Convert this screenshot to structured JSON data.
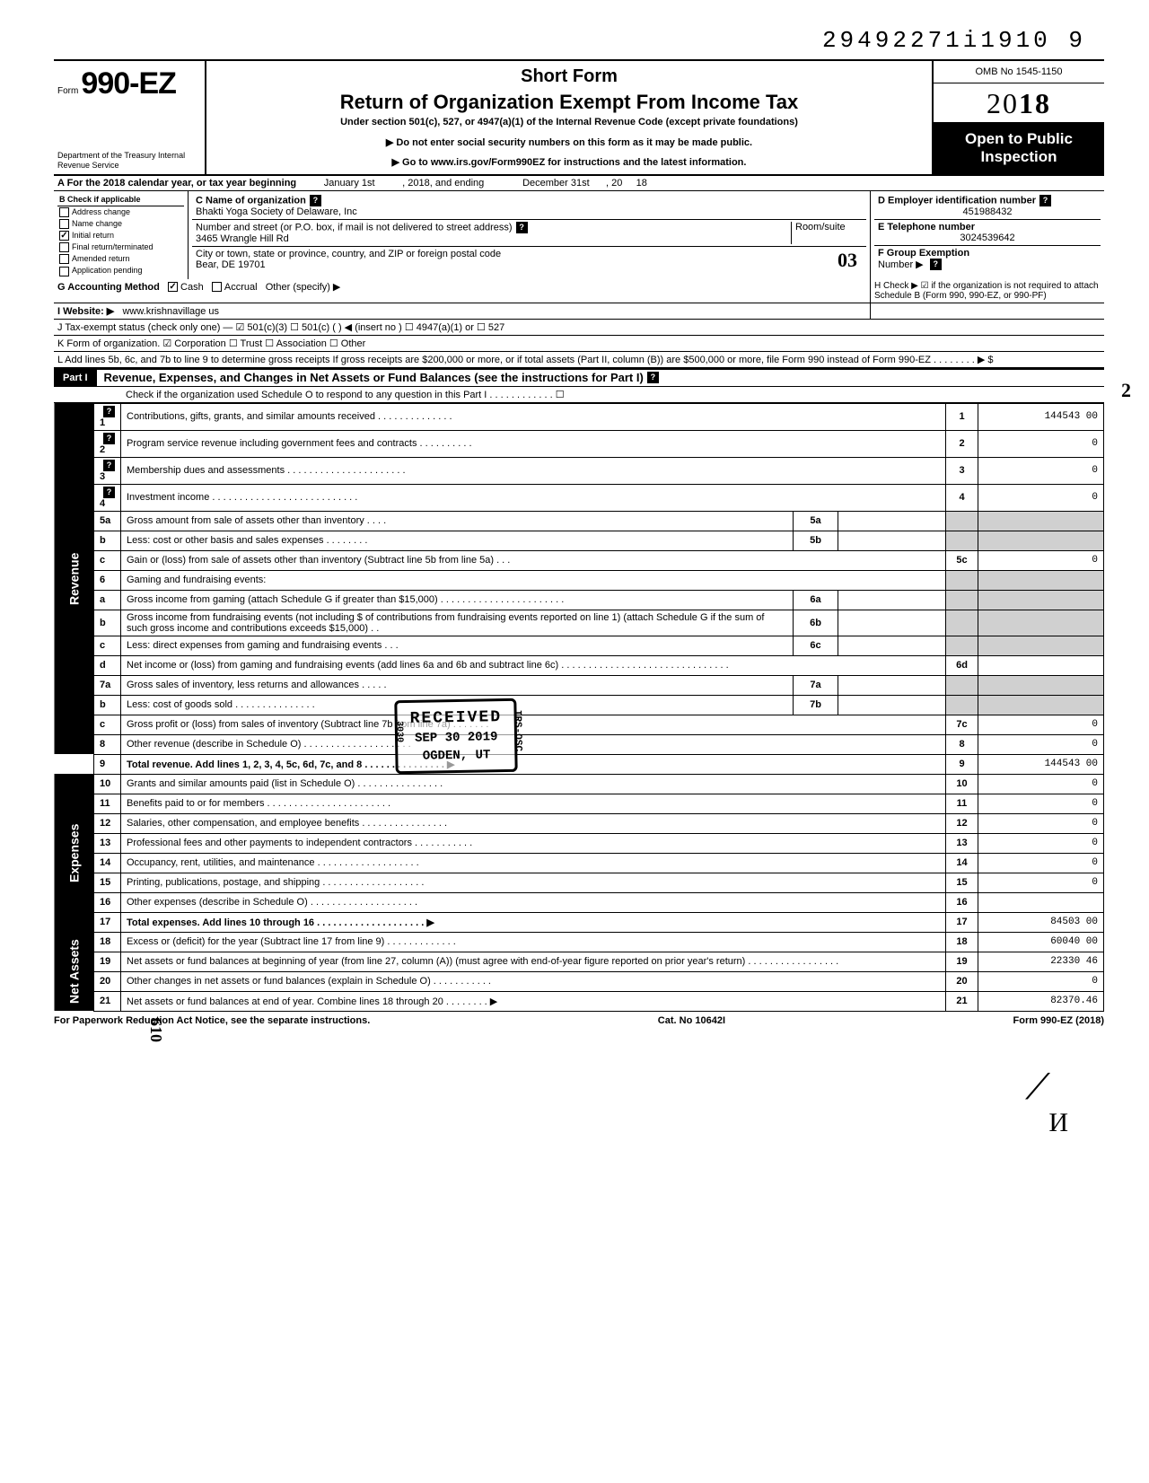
{
  "top_id": "29492271i1910 9",
  "header": {
    "form_prefix": "Form",
    "form_number": "990-EZ",
    "dept": "Department of the Treasury\nInternal Revenue Service",
    "short": "Short Form",
    "title": "Return of Organization Exempt From Income Tax",
    "sub": "Under section 501(c), 527, or 4947(a)(1) of the Internal Revenue Code (except private foundations)",
    "warn": "▶ Do not enter social security numbers on this form as it may be made public.",
    "goto": "▶ Go to www.irs.gov/Form990EZ for instructions and the latest information.",
    "omb": "OMB No 1545-1150",
    "year_prefix": "20",
    "year_suffix": "18",
    "open": "Open to Public Inspection"
  },
  "lineA": {
    "label": "A For the 2018 calendar year, or tax year beginning",
    "begin": "January 1st",
    "mid": ", 2018, and ending",
    "end": "December 31st",
    "suffix": ", 20",
    "yr": "18"
  },
  "checkB": {
    "heading": "B Check if applicable",
    "items": [
      "Address change",
      "Name change",
      "Initial return",
      "Final return/terminated",
      "Amended return",
      "Application pending"
    ],
    "checked_index": 2
  },
  "org": {
    "c_label": "C Name of organization",
    "name": "Bhakti Yoga Society of Delaware, Inc",
    "addr_label": "Number and street (or P.O. box, if mail is not delivered to street address)",
    "room_label": "Room/suite",
    "street": "3465 Wrangle Hill Rd",
    "city_label": "City or town, state or province, country, and ZIP or foreign postal code",
    "city": "Bear, DE 19701",
    "hand_city": "03"
  },
  "right": {
    "d_label": "D Employer identification number",
    "ein": "451988432",
    "e_label": "E Telephone number",
    "phone": "3024539642",
    "f_label": "F Group Exemption",
    "f_sub": "Number ▶"
  },
  "G": {
    "label": "G Accounting Method",
    "cash": "Cash",
    "accrual": "Accrual",
    "other": "Other (specify) ▶"
  },
  "H": "H Check ▶ ☑ if the organization is not required to attach Schedule B (Form 990, 990-EZ, or 990-PF)",
  "I": {
    "label": "I Website: ▶",
    "value": "www.krishnavillage us"
  },
  "J": "J Tax-exempt status (check only one) — ☑ 501(c)(3)   ☐ 501(c) (    ) ◀ (insert no )  ☐ 4947(a)(1) or   ☐ 527",
  "K": "K Form of organization.  ☑ Corporation   ☐ Trust   ☐ Association   ☐ Other",
  "L": "L Add lines 5b, 6c, and 7b to line 9 to determine gross receipts  If gross receipts are $200,000 or more, or if total assets (Part II, column (B)) are $500,000 or more, file Form 990 instead of Form 990-EZ  .   .   .   .   .   .   .   .   ▶  $",
  "partI": {
    "label": "Part I",
    "title": "Revenue, Expenses, and Changes in Net Assets or Fund Balances (see the instructions for Part I)",
    "check": "Check if the organization used Schedule O to respond to any question in this Part I  .  .  .  .  .  .  .  .  .  .  .  .  ☐"
  },
  "hand2": "2",
  "lines": {
    "1": {
      "text": "Contributions, gifts, grants, and similar amounts received .  .  .  .  .  .  .  .  .  .  .  .  .  .",
      "box": "1",
      "amount": "144543 00"
    },
    "2": {
      "text": "Program service revenue including government fees and contracts  .  .  .  .  .  .  .  .  .  .",
      "box": "2",
      "amount": "0"
    },
    "3": {
      "text": "Membership dues and assessments .  .  .  .  .  .  .  .  .  .  .  .  .  .  .  .  .  .  .  .  .  .",
      "box": "3",
      "amount": "0"
    },
    "4": {
      "text": "Investment income  .  .  .  .  .  .  .  .  .  .  .  .  .  .  .  .  .  .  .  .  .  .  .  .  .  .  .",
      "box": "4",
      "amount": "0"
    },
    "5a": {
      "text": "Gross amount from sale of assets other than inventory  .  .  .  .",
      "sub": "5a"
    },
    "5b": {
      "text": "Less: cost or other basis and sales expenses .  .  .  .  .  .  .  .",
      "sub": "5b"
    },
    "5c": {
      "text": "Gain or (loss) from sale of assets other than inventory (Subtract line 5b from line 5a) .  .  .",
      "box": "5c",
      "amount": "0"
    },
    "6": {
      "text": "Gaming and fundraising events:"
    },
    "6a": {
      "text": "Gross income from gaming (attach Schedule G if greater than $15,000) .  .  .  .  .  .  .  .  .  .  .  .  .  .  .  .  .  .  .  .  .  .  .",
      "sub": "6a"
    },
    "6b": {
      "text": "Gross income from fundraising events (not including  $                  of contributions from fundraising events reported on line 1) (attach Schedule G if the sum of such gross income and contributions exceeds $15,000) .  .",
      "sub": "6b"
    },
    "6c": {
      "text": "Less: direct expenses from gaming and fundraising events  .  .  .",
      "sub": "6c"
    },
    "6d": {
      "text": "Net income or (loss) from gaming and fundraising events (add lines 6a and 6b and subtract line 6c)  .  .  .  .  .  .  .  .  .  .  .  .  .  .  .  .  .  .  .  .  .  .  .  .  .  .  .  .  .  .  .",
      "box": "6d",
      "amount": ""
    },
    "7a": {
      "text": "Gross sales of inventory, less returns and allowances .  .  .  .  .",
      "sub": "7a"
    },
    "7b": {
      "text": "Less: cost of goods sold  .  .  .  .  .  .  .  .  .  .  .  .  .  .  .",
      "sub": "7b"
    },
    "7c": {
      "text": "Gross profit or (loss) from sales of inventory (Subtract line 7b from line 7a)  .  .  .  .  .  .  .",
      "box": "7c",
      "amount": "0"
    },
    "8": {
      "text": "Other revenue (describe in Schedule O) .  .  .  .  .  .  .  .  .  .  .  .  .  .  .  .  .  .  .  .",
      "box": "8",
      "amount": "0"
    },
    "9": {
      "text": "Total revenue. Add lines 1, 2, 3, 4, 5c, 6d, 7c, and 8  .  .  .  .  .  .  .  .  .  .  .  .  .  .  .  ▶",
      "box": "9",
      "amount": "144543 00"
    },
    "10": {
      "text": "Grants and similar amounts paid (list in Schedule O)  .  .  .  .  .  .  .  .  .  .  .  .  .  .  .  .",
      "box": "10",
      "amount": "0"
    },
    "11": {
      "text": "Benefits paid to or for members  .  .  .  .  .  .  .  .  .  .  .  .  .  .  .  .  .  .  .  .  .  .  .",
      "box": "11",
      "amount": "0"
    },
    "12": {
      "text": "Salaries, other compensation, and employee benefits  .  .  .  .  .  .  .  .  .  .  .  .  .  .  .  .",
      "box": "12",
      "amount": "0"
    },
    "13": {
      "text": "Professional fees and other payments to independent contractors  .  .  .  .  .  .  .  .  .  .  .",
      "box": "13",
      "amount": "0"
    },
    "14": {
      "text": "Occupancy, rent, utilities, and maintenance  .  .  .  .  .  .  .  .  .  .  .  .  .  .  .  .  .  .  .",
      "box": "14",
      "amount": "0"
    },
    "15": {
      "text": "Printing, publications, postage, and shipping .  .  .  .  .  .  .  .  .  .  .  .  .  .  .  .  .  .  .",
      "box": "15",
      "amount": "0"
    },
    "16": {
      "text": "Other expenses (describe in Schedule O)  .  .  .  .  .  .  .  .  .  .  .  .  .  .  .  .  .  .  .  .",
      "box": "16",
      "amount": ""
    },
    "17": {
      "text": "Total expenses. Add lines 10 through 16 .  .  .  .  .  .  .  .  .  .  .  .  .  .  .  .  .  .  .  . ▶",
      "box": "17",
      "amount": "84503 00"
    },
    "18": {
      "text": "Excess or (deficit) for the year (Subtract line 17 from line 9)  .  .  .  .  .  .  .  .  .  .  .  .  .",
      "box": "18",
      "amount": "60040 00"
    },
    "19": {
      "text": "Net assets or fund balances at beginning of year (from line 27, column (A)) (must agree with end-of-year figure reported on prior year's return)  .  .  .  .  .  .  .  .  .  .  .  .  .  .  .  .  .",
      "box": "19",
      "amount": "22330 46"
    },
    "20": {
      "text": "Other changes in net assets or fund balances (explain in Schedule O) .  .  .  .  .  .  .  .  .  .  .",
      "box": "20",
      "amount": "0"
    },
    "21": {
      "text": "Net assets or fund balances at end of year. Combine lines 18 through 20  .  .  .  .  .  .  .  . ▶",
      "box": "21",
      "amount": "82370.46"
    }
  },
  "stamp": {
    "received": "RECEIVED",
    "code": "3030",
    "date": "SEP 30 2019",
    "loc": "OGDEN, UT",
    "side": "IRS-OSC"
  },
  "vlabels": {
    "rev": "Revenue",
    "exp": "Expenses",
    "na": "Net Assets"
  },
  "footer": {
    "left": "For Paperwork Reduction Act Notice, see the separate instructions.",
    "mid": "Cat. No 10642I",
    "right": "Form 990-EZ (2018)",
    "hand": "610"
  },
  "sig_bottom": "⟋",
  "initial": "И"
}
